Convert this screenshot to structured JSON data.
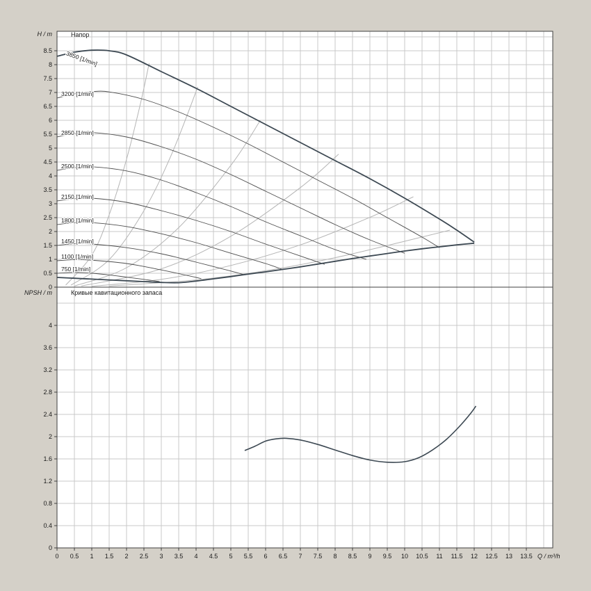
{
  "page": {
    "background": "#d4d0c8"
  },
  "colors": {
    "plot_bg": "#ffffff",
    "grid": "#c9c9c9",
    "axis": "#3f3f3f",
    "curve": "#4d4d4d",
    "envelope": "#3c4852",
    "decor": "#b5b5b5",
    "text": "#1a1a1a"
  },
  "chart_data": [
    {
      "type": "line",
      "title": "Напор",
      "ylabel": "H / m",
      "xlabel": "Q / m³/h",
      "xlim": [
        0,
        14.25
      ],
      "ylim": [
        0,
        9.2
      ],
      "x_ticks": [
        0,
        0.5,
        1,
        1.5,
        2,
        2.5,
        3,
        3.5,
        4,
        4.5,
        5,
        5.5,
        6,
        6.5,
        7,
        7.5,
        8,
        8.5,
        9,
        9.5,
        10,
        10.5,
        11,
        11.5,
        12,
        12.5,
        13,
        13.5
      ],
      "x_tick_labels": [
        "0",
        "0.5",
        "1",
        "1.5",
        "2",
        "2.5",
        "3",
        "3.5",
        "4",
        "4.5",
        "5",
        "5.5",
        "6",
        "6.5",
        "7",
        "7.5",
        "8",
        "8.5",
        "9",
        "9.5",
        "10",
        "10.5",
        "11",
        "11.5",
        "12",
        "12.5",
        "13",
        "13.5"
      ],
      "y_ticks": [
        0,
        0.5,
        1,
        1.5,
        2,
        2.5,
        3,
        3.5,
        4,
        4.5,
        5,
        5.5,
        6,
        6.5,
        7,
        7.5,
        8,
        8.5
      ],
      "y_tick_labels": [
        "0",
        "0.5",
        "1",
        "1.5",
        "2",
        "2.5",
        "3",
        "3.5",
        "4",
        "4.5",
        "5",
        "5.5",
        "6",
        "6.5",
        "7",
        "7.5",
        "8",
        "8.5"
      ],
      "series": [
        {
          "name": "3850",
          "label": "3850 [1/min]",
          "points": [
            [
              0,
              8.3
            ],
            [
              0.5,
              8.45
            ],
            [
              1,
              8.52
            ],
            [
              1.5,
              8.5
            ],
            [
              2,
              8.35
            ],
            [
              3,
              7.75
            ],
            [
              4,
              7.15
            ],
            [
              5,
              6.5
            ],
            [
              6,
              5.85
            ],
            [
              7,
              5.2
            ],
            [
              8,
              4.55
            ],
            [
              9,
              3.9
            ],
            [
              10,
              3.2
            ],
            [
              11,
              2.45
            ],
            [
              11.5,
              2.05
            ],
            [
              12,
              1.62
            ]
          ]
        },
        {
          "name": "3200",
          "label": "3200 [1/min]",
          "points": [
            [
              0,
              6.8
            ],
            [
              0.5,
              6.95
            ],
            [
              1,
              7.03
            ],
            [
              1.5,
              7.02
            ],
            [
              2.5,
              6.75
            ],
            [
              3.5,
              6.3
            ],
            [
              4.5,
              5.75
            ],
            [
              5.5,
              5.15
            ],
            [
              6.5,
              4.5
            ],
            [
              7.5,
              3.85
            ],
            [
              8.5,
              3.2
            ],
            [
              9.5,
              2.5
            ],
            [
              10.5,
              1.8
            ],
            [
              11,
              1.42
            ]
          ]
        },
        {
          "name": "2850",
          "label": "2850 [1/min]",
          "points": [
            [
              0,
              5.4
            ],
            [
              0.5,
              5.52
            ],
            [
              1,
              5.56
            ],
            [
              2,
              5.4
            ],
            [
              3,
              5.05
            ],
            [
              4,
              4.6
            ],
            [
              5,
              4.05
            ],
            [
              6,
              3.45
            ],
            [
              7,
              2.85
            ],
            [
              8,
              2.25
            ],
            [
              9,
              1.7
            ],
            [
              10,
              1.22
            ]
          ]
        },
        {
          "name": "2500",
          "label": "2500 [1/min]",
          "points": [
            [
              0,
              4.2
            ],
            [
              0.5,
              4.3
            ],
            [
              1,
              4.33
            ],
            [
              2,
              4.18
            ],
            [
              3,
              3.85
            ],
            [
              4,
              3.4
            ],
            [
              5,
              2.9
            ],
            [
              6,
              2.35
            ],
            [
              7,
              1.85
            ],
            [
              8,
              1.35
            ],
            [
              8.9,
              1.0
            ]
          ]
        },
        {
          "name": "2150",
          "label": "2150 [1/min]",
          "points": [
            [
              0,
              3.1
            ],
            [
              0.5,
              3.18
            ],
            [
              1,
              3.2
            ],
            [
              2,
              3.05
            ],
            [
              3,
              2.75
            ],
            [
              4,
              2.4
            ],
            [
              5,
              2.0
            ],
            [
              6,
              1.55
            ],
            [
              7,
              1.12
            ],
            [
              7.7,
              0.82
            ]
          ]
        },
        {
          "name": "1800",
          "label": "1800 [1/min]",
          "points": [
            [
              0,
              2.25
            ],
            [
              0.5,
              2.32
            ],
            [
              1,
              2.32
            ],
            [
              2,
              2.18
            ],
            [
              3,
              1.92
            ],
            [
              4,
              1.6
            ],
            [
              5,
              1.22
            ],
            [
              6,
              0.85
            ],
            [
              6.5,
              0.63
            ]
          ]
        },
        {
          "name": "1450",
          "label": "1450 [1/min]",
          "points": [
            [
              0,
              1.5
            ],
            [
              0.5,
              1.56
            ],
            [
              1,
              1.55
            ],
            [
              2,
              1.42
            ],
            [
              3,
              1.2
            ],
            [
              4,
              0.9
            ],
            [
              5,
              0.58
            ],
            [
              5.35,
              0.46
            ]
          ]
        },
        {
          "name": "1100",
          "label": "1100 [1/min]",
          "points": [
            [
              0,
              0.95
            ],
            [
              0.5,
              0.99
            ],
            [
              1,
              0.97
            ],
            [
              2,
              0.85
            ],
            [
              3,
              0.62
            ],
            [
              4,
              0.35
            ],
            [
              4.15,
              0.3
            ]
          ]
        },
        {
          "name": "750",
          "label": "750 [1/min]",
          "points": [
            [
              0,
              0.5
            ],
            [
              0.5,
              0.53
            ],
            [
              1,
              0.5
            ],
            [
              1.5,
              0.44
            ],
            [
              2,
              0.36
            ],
            [
              2.5,
              0.28
            ],
            [
              2.95,
              0.2
            ]
          ]
        }
      ],
      "envelope_lower": [
        [
          0,
          0.35
        ],
        [
          0.5,
          0.32
        ],
        [
          1,
          0.29
        ],
        [
          1.5,
          0.26
        ],
        [
          2,
          0.23
        ],
        [
          2.5,
          0.2
        ],
        [
          3,
          0.17
        ],
        [
          3.5,
          0.16
        ],
        [
          4,
          0.22
        ],
        [
          4.5,
          0.3
        ],
        [
          5,
          0.38
        ],
        [
          5.5,
          0.47
        ],
        [
          6,
          0.55
        ],
        [
          6.5,
          0.64
        ],
        [
          7,
          0.73
        ],
        [
          7.5,
          0.83
        ],
        [
          8,
          0.93
        ],
        [
          8.5,
          1.03
        ],
        [
          9,
          1.12
        ],
        [
          9.5,
          1.21
        ],
        [
          10,
          1.3
        ],
        [
          10.5,
          1.38
        ],
        [
          11,
          1.45
        ],
        [
          11.5,
          1.52
        ],
        [
          12,
          1.58
        ]
      ],
      "system_curves": [
        [
          [
            0.25,
            0.07
          ],
          [
            1,
            1.15
          ],
          [
            1.5,
            2.6
          ],
          [
            2,
            4.6
          ],
          [
            2.4,
            6.6
          ],
          [
            2.65,
            8.05
          ]
        ],
        [
          [
            0.4,
            0.07
          ],
          [
            1.5,
            0.99
          ],
          [
            2.5,
            2.75
          ],
          [
            3.3,
            4.79
          ],
          [
            4.05,
            7.2
          ]
        ],
        [
          [
            0.5,
            0.04
          ],
          [
            2,
            0.7
          ],
          [
            3.5,
            2.14
          ],
          [
            5,
            4.38
          ],
          [
            5.85,
            6.0
          ]
        ],
        [
          [
            0.7,
            0.04
          ],
          [
            3,
            0.66
          ],
          [
            5,
            1.83
          ],
          [
            7,
            3.58
          ],
          [
            8.1,
            4.78
          ]
        ],
        [
          [
            1,
            0.03
          ],
          [
            3,
            0.28
          ],
          [
            5,
            0.78
          ],
          [
            7,
            1.52
          ],
          [
            9,
            2.51
          ],
          [
            10.25,
            3.25
          ]
        ],
        [
          [
            1.5,
            0.04
          ],
          [
            4,
            0.26
          ],
          [
            6,
            0.59
          ],
          [
            8,
            1.06
          ],
          [
            10,
            1.65
          ],
          [
            11.3,
            2.05
          ]
        ]
      ]
    },
    {
      "type": "line",
      "title": "Кривые кавитационного запаса",
      "ylabel": "NPSH / m",
      "ylim": [
        0,
        4.6
      ],
      "y_ticks": [
        0,
        0.4,
        0.8,
        1.2,
        1.6,
        2,
        2.4,
        2.8,
        3.2,
        3.6,
        4
      ],
      "y_tick_labels": [
        "0",
        "0.4",
        "0.8",
        "1.2",
        "1.6",
        "2",
        "2.4",
        "2.8",
        "3.2",
        "3.6",
        "4"
      ],
      "series": [
        {
          "name": "NPSH",
          "points": [
            [
              5.4,
              1.75
            ],
            [
              5.7,
              1.83
            ],
            [
              6,
              1.92
            ],
            [
              6.3,
              1.96
            ],
            [
              6.6,
              1.97
            ],
            [
              7,
              1.94
            ],
            [
              7.5,
              1.86
            ],
            [
              8,
              1.76
            ],
            [
              8.5,
              1.66
            ],
            [
              9,
              1.58
            ],
            [
              9.5,
              1.54
            ],
            [
              10,
              1.55
            ],
            [
              10.4,
              1.62
            ],
            [
              10.8,
              1.76
            ],
            [
              11.2,
              1.95
            ],
            [
              11.6,
              2.2
            ],
            [
              11.9,
              2.42
            ],
            [
              12.05,
              2.55
            ]
          ]
        }
      ]
    }
  ]
}
